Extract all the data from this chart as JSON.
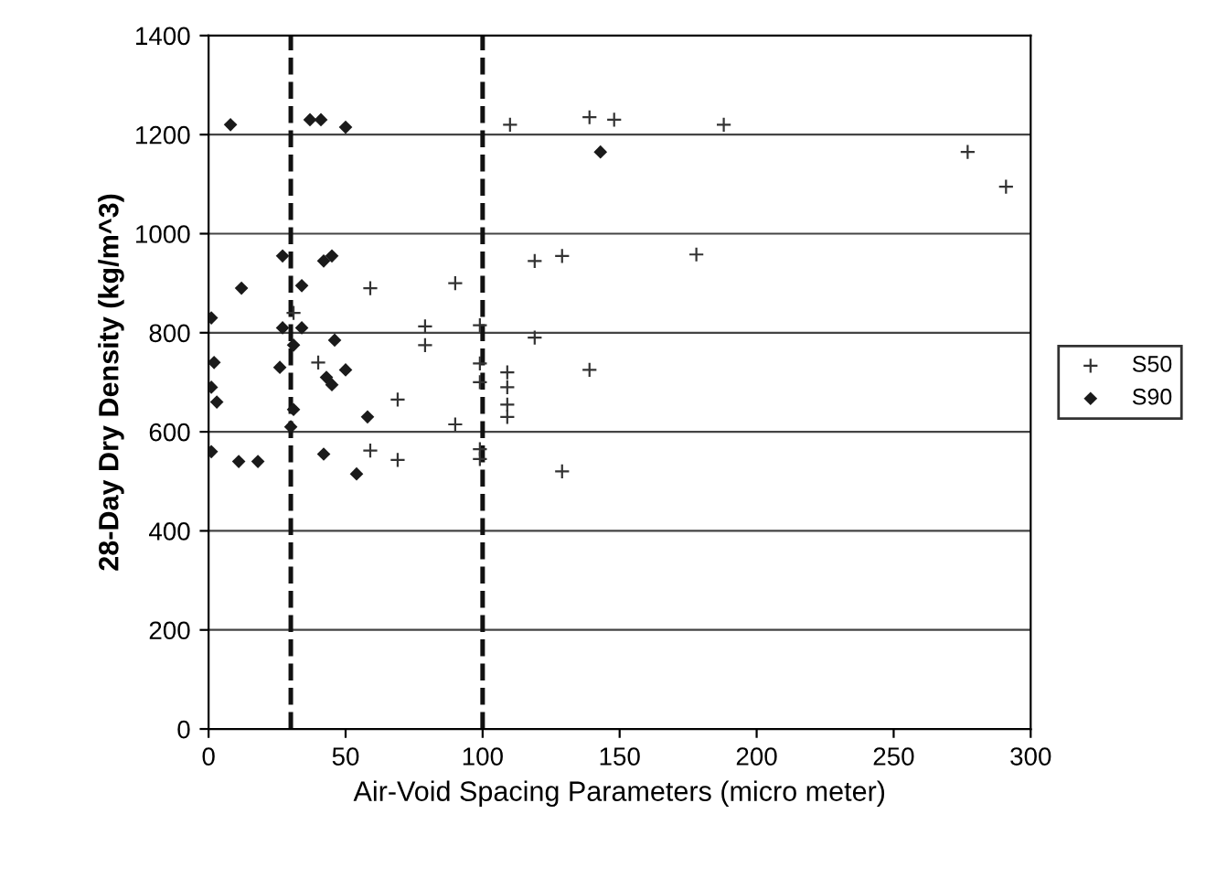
{
  "chart_data": {
    "type": "scatter",
    "xlabel": "Air-Void Spacing Parameters (micro meter)",
    "ylabel": "28-Day Dry Density (kg/m^3)",
    "xlim": [
      0,
      300
    ],
    "xticks": [
      0,
      50,
      100,
      150,
      200,
      250,
      300
    ],
    "ylim": [
      0,
      1400
    ],
    "yticks": [
      0,
      200,
      400,
      600,
      800,
      1000,
      1200,
      1400
    ],
    "grid": "y",
    "legend": "right",
    "series": [
      {
        "name": "S50",
        "color": "#333333",
        "marker": "cross",
        "x": [
          110,
          139,
          148,
          188,
          277,
          291,
          129,
          178,
          119,
          59,
          90,
          79,
          79,
          99,
          119,
          40,
          99,
          99,
          109,
          109,
          109,
          109,
          69,
          90,
          59,
          69,
          99,
          99,
          139,
          129,
          31
        ],
        "values": [
          1220,
          1235,
          1230,
          1220,
          1165,
          1095,
          955,
          958,
          945,
          890,
          900,
          813,
          775,
          815,
          790,
          740,
          738,
          700,
          720,
          690,
          655,
          630,
          665,
          615,
          562,
          543,
          565,
          545,
          725,
          520,
          840
        ]
      },
      {
        "name": "S90",
        "color": "#1a1a1a",
        "marker": "diamond",
        "x": [
          8,
          37,
          41,
          50,
          143,
          27,
          42,
          45,
          12,
          34,
          1,
          27,
          34,
          31,
          46,
          2,
          26,
          50,
          43,
          45,
          1,
          3,
          31,
          58,
          30,
          1,
          11,
          18,
          42,
          54
        ],
        "values": [
          1220,
          1230,
          1230,
          1215,
          1165,
          955,
          945,
          955,
          890,
          895,
          830,
          810,
          810,
          775,
          785,
          740,
          730,
          725,
          710,
          695,
          690,
          660,
          645,
          630,
          610,
          560,
          540,
          540,
          555,
          515
        ]
      }
    ],
    "ref_lines": [
      {
        "axis": "x",
        "value": 30,
        "color": "#111111",
        "line_style": "dashed"
      },
      {
        "axis": "x",
        "value": 100,
        "color": "#111111",
        "line_style": "dashed"
      }
    ]
  }
}
